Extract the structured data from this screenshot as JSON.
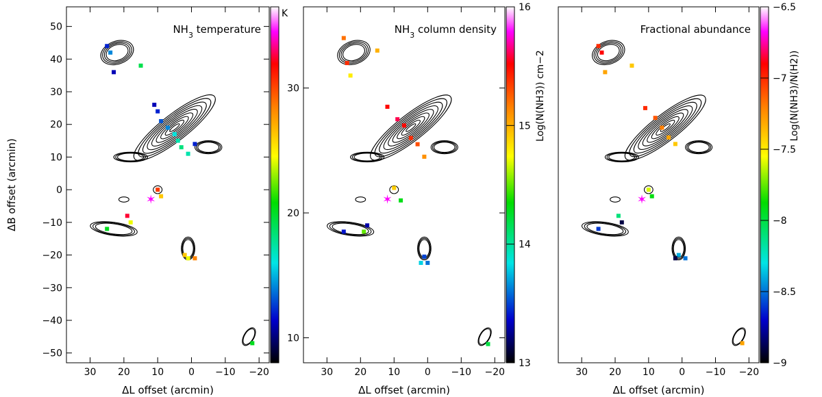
{
  "chart_data": [
    {
      "type": "scatter",
      "title": "NH3 temperature",
      "title_main": "NH",
      "title_sub": "3",
      "title_rest": " temperature",
      "xlabel": "ΔL offset (arcmin)",
      "ylabel": "ΔB offset (arcmin)",
      "xlim": [
        37,
        -23
      ],
      "ylim": [
        -53,
        56
      ],
      "xticks": [
        30,
        20,
        10,
        0,
        -10,
        -20
      ],
      "yticks": [
        -50,
        -40,
        -30,
        -20,
        -10,
        0,
        10,
        20,
        30,
        40,
        50
      ],
      "colorbar": {
        "label": "K",
        "range": [
          8,
          36
        ],
        "ticks": []
      },
      "points": [
        {
          "x": 25,
          "y": 44,
          "c": 12
        },
        {
          "x": 24,
          "y": 42,
          "c": 14
        },
        {
          "x": 23,
          "y": 36,
          "c": 11
        },
        {
          "x": 15,
          "y": 38,
          "c": 19
        },
        {
          "x": 11,
          "y": 26,
          "c": 11
        },
        {
          "x": 10,
          "y": 24,
          "c": 12
        },
        {
          "x": 9,
          "y": 21,
          "c": 13
        },
        {
          "x": 7,
          "y": 19,
          "c": 14
        },
        {
          "x": 5,
          "y": 17,
          "c": 16
        },
        {
          "x": 4,
          "y": 15,
          "c": 17
        },
        {
          "x": 3,
          "y": 13,
          "c": 18
        },
        {
          "x": 1,
          "y": 11,
          "c": 17
        },
        {
          "x": -1,
          "y": 14,
          "c": 12
        },
        {
          "x": 10,
          "y": 0,
          "c": 30
        },
        {
          "x": 9,
          "y": -2,
          "c": 26
        },
        {
          "x": 18,
          "y": -10,
          "c": 24
        },
        {
          "x": 19,
          "y": -8,
          "c": 32
        },
        {
          "x": 25,
          "y": -12,
          "c": 20
        },
        {
          "x": 2,
          "y": -20,
          "c": 26
        },
        {
          "x": 1,
          "y": -21,
          "c": 24
        },
        {
          "x": -1,
          "y": -21,
          "c": 28
        },
        {
          "x": -18,
          "y": -47,
          "c": 20
        }
      ]
    },
    {
      "type": "scatter",
      "title": "NH3 column density",
      "title_main": "NH",
      "title_sub": "3",
      "title_rest": " column density",
      "xlabel": "ΔL offset (arcmin)",
      "ylabel": "",
      "xlim": [
        37,
        -23
      ],
      "ylim": [
        8,
        36.5
      ],
      "xticks": [
        30,
        20,
        10,
        0,
        -10,
        -20
      ],
      "yticks": [
        10,
        20,
        30
      ],
      "colorbar": {
        "label": "Log(N(NH3)) cm−2",
        "range": [
          13,
          16
        ],
        "ticks": [
          13,
          14,
          15,
          16
        ]
      },
      "points": [
        {
          "x": 25,
          "y": 34,
          "c": 15.2
        },
        {
          "x": 24,
          "y": 32,
          "c": 15.4
        },
        {
          "x": 23,
          "y": 31,
          "c": 14.8
        },
        {
          "x": 15,
          "y": 33,
          "c": 15.0
        },
        {
          "x": 12,
          "y": 28.5,
          "c": 15.5
        },
        {
          "x": 9,
          "y": 27.5,
          "c": 15.6
        },
        {
          "x": 7,
          "y": 27,
          "c": 15.5
        },
        {
          "x": 5,
          "y": 26,
          "c": 15.4
        },
        {
          "x": 3,
          "y": 25.5,
          "c": 15.3
        },
        {
          "x": 1,
          "y": 24.5,
          "c": 15.1
        },
        {
          "x": 10,
          "y": 22,
          "c": 14.9
        },
        {
          "x": 8,
          "y": 21,
          "c": 14.3
        },
        {
          "x": 18,
          "y": 19,
          "c": 13.3
        },
        {
          "x": 19,
          "y": 18.5,
          "c": 14.5
        },
        {
          "x": 25,
          "y": 18.5,
          "c": 13.4
        },
        {
          "x": 1,
          "y": 16.5,
          "c": 13.5
        },
        {
          "x": 2,
          "y": 16,
          "c": 13.8
        },
        {
          "x": 0,
          "y": 16,
          "c": 13.6
        },
        {
          "x": -18,
          "y": 9.5,
          "c": 14.2
        }
      ]
    },
    {
      "type": "scatter",
      "title": "Fractional abundance",
      "xlabel": "ΔL offset (arcmin)",
      "ylabel": "",
      "xlim": [
        37,
        -23
      ],
      "ylim": [
        -53,
        56
      ],
      "xticks": [
        30,
        20,
        10,
        0,
        -10,
        -20
      ],
      "yticks": [],
      "colorbar": {
        "label": "Log(N(NH3)/N(H2))",
        "range": [
          -9,
          -6.5
        ],
        "ticks": [
          -9,
          -8.5,
          -8,
          -7.5,
          -7,
          -6.5
        ]
      },
      "points": [
        {
          "x": 25,
          "y": 44,
          "c": -7.0
        },
        {
          "x": 24,
          "y": 42,
          "c": -6.9
        },
        {
          "x": 23,
          "y": 36,
          "c": -7.3
        },
        {
          "x": 15,
          "y": 38,
          "c": -7.4
        },
        {
          "x": 11,
          "y": 25,
          "c": -7.0
        },
        {
          "x": 8,
          "y": 22,
          "c": -7.1
        },
        {
          "x": 6,
          "y": 19,
          "c": -7.2
        },
        {
          "x": 4,
          "y": 16,
          "c": -7.3
        },
        {
          "x": 2,
          "y": 14,
          "c": -7.4
        },
        {
          "x": 10,
          "y": 0,
          "c": -7.6
        },
        {
          "x": 9,
          "y": -2,
          "c": -7.9
        },
        {
          "x": 18,
          "y": -10,
          "c": -8.9
        },
        {
          "x": 19,
          "y": -8,
          "c": -8.1
        },
        {
          "x": 25,
          "y": -12,
          "c": -8.6
        },
        {
          "x": 1,
          "y": -20,
          "c": -8.4
        },
        {
          "x": 2,
          "y": -21,
          "c": -8.9
        },
        {
          "x": -1,
          "y": -21,
          "c": -8.5
        },
        {
          "x": -18,
          "y": -47,
          "c": -7.3
        }
      ]
    }
  ],
  "star_marker": {
    "x": 12,
    "y": -3,
    "color": "#ff00ff"
  }
}
